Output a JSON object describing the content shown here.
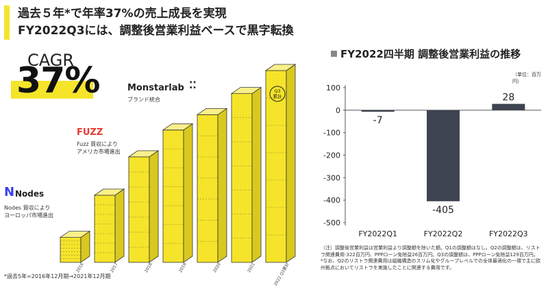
{
  "title": {
    "line1": "過去５年*で年率37%の売上成長を実現",
    "line2": "FY2022Q3には、調整後営業利益ベースで黒字転換"
  },
  "cagr": {
    "label": "CAGR",
    "value": "37%"
  },
  "growth": {
    "bar_heights": [
      0.13,
      0.35,
      0.55,
      0.69,
      0.77,
      0.88,
      1.0
    ],
    "x_labels": [
      "2016",
      "2017",
      "2018",
      "2019",
      "2020",
      "2021",
      "2022 Q3累計"
    ],
    "q3_badge": "Q3\n累計",
    "footnote": "*過去5年=2016年12月期→2021年12月期"
  },
  "brands": {
    "monstarlab": {
      "name": "Monstarlab",
      "note": "ブランド統合"
    },
    "fuzz": {
      "name": "FUZZ",
      "note_line1": "Fuzz 買収により",
      "note_line2": "アメリカ市場進出"
    },
    "nodes": {
      "name": "Nodes",
      "note_line1": "Nodes 買収により",
      "note_line2": "ヨーロッパ市場進出"
    }
  },
  "colors": {
    "accent": "#f5e42a",
    "bar_dark": "#3d4350",
    "fuzz_red": "#e5392e",
    "nodes_blue": "#3a3ff0"
  },
  "right_title": "FY2022四半期 調整後営業利益の推移",
  "unit": "（単位：百万円）",
  "chart_data": {
    "type": "bar",
    "categories": [
      "FY2022Q1",
      "FY2022Q2",
      "FY2022Q3"
    ],
    "values": [
      -7,
      -405,
      28
    ],
    "data_labels": [
      "-7",
      "-405",
      "28"
    ],
    "ylim": [
      -500,
      100
    ],
    "yticks": [
      100,
      0,
      -100,
      -200,
      -300,
      -400,
      -500
    ],
    "grid": false
  },
  "note": "（注）調整後営業利益は営業利益より調整額を除いた額。Q1の調整額はなし。Q2の調整額は、リストラ関連費用-322百万円、PPPローン免除益26百万円。Q3の調整額は、PPPローン免除益129百万円。\n*なお、Q2のリストラ関連費用は組織構造のスリム化やグループレベルでの全体最適化の一環で主に欧州拠点においてリストラを実施したことに関連する費用です。"
}
